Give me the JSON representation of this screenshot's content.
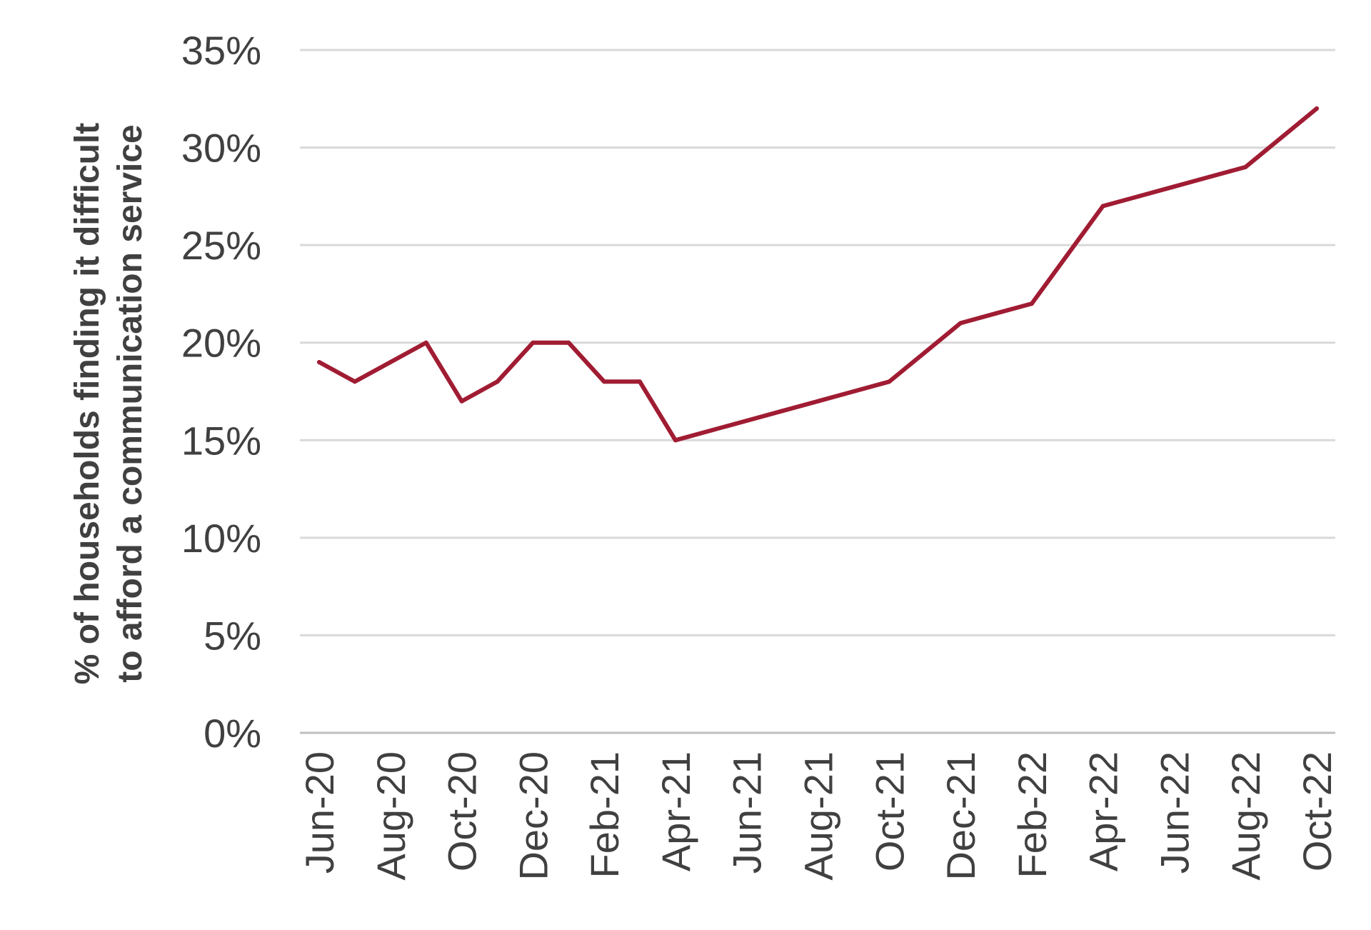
{
  "chart_data": {
    "type": "line",
    "title": "",
    "ylabel_lines": [
      "% of households finding it difficult",
      "to afford a communication service"
    ],
    "xlabel": "",
    "ylim": [
      0,
      35
    ],
    "y_ticks": [
      "0%",
      "5%",
      "10%",
      "15%",
      "20%",
      "25%",
      "30%",
      "35%"
    ],
    "y_tick_values": [
      0,
      5,
      10,
      15,
      20,
      25,
      30,
      35
    ],
    "x_tick_labels": [
      "Jun-20",
      "Aug-20",
      "Oct-20",
      "Dec-20",
      "Feb-21",
      "Apr-21",
      "Jun-21",
      "Aug-21",
      "Oct-21",
      "Dec-21",
      "Feb-22",
      "Apr-22",
      "Jun-22",
      "Aug-22",
      "Oct-22"
    ],
    "x": [
      "Jun-20",
      "Jul-20",
      "Aug-20",
      "Sep-20",
      "Oct-20",
      "Nov-20",
      "Dec-20",
      "Jan-21",
      "Feb-21",
      "Mar-21",
      "Apr-21",
      "May-21",
      "Jun-21",
      "Jul-21",
      "Aug-21",
      "Sep-21",
      "Oct-21",
      "Nov-21",
      "Dec-21",
      "Jan-22",
      "Feb-22",
      "Mar-22",
      "Apr-22",
      "May-22",
      "Jun-22",
      "Jul-22",
      "Aug-22",
      "Sep-22",
      "Oct-22"
    ],
    "series": [
      {
        "values": [
          19,
          18,
          19,
          20,
          17,
          18,
          20,
          20,
          18,
          18,
          15,
          15.5,
          16,
          16.5,
          17,
          17.5,
          18,
          19.5,
          21,
          21.5,
          22,
          24.5,
          27,
          27.5,
          28,
          28.5,
          29,
          30.5,
          32
        ],
        "color": "#a01c33"
      }
    ],
    "grid": true,
    "legend": "none"
  }
}
